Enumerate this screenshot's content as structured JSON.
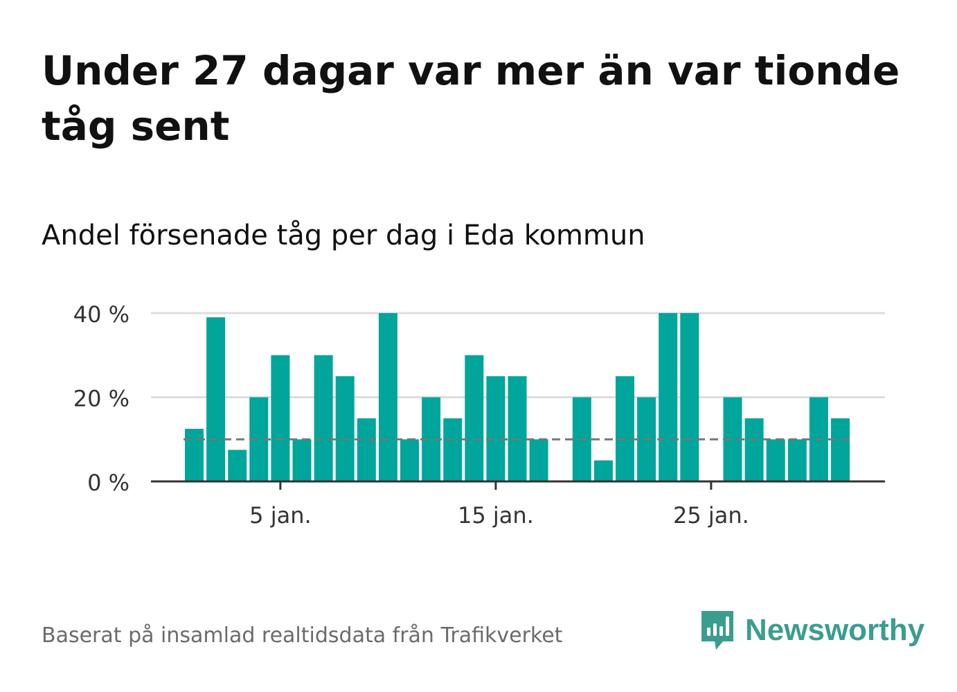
{
  "title": "Under 27 dagar var mer än var tionde tåg sent",
  "subtitle": "Andel försenade tåg per dag i Eda kommun",
  "footer": "Baserat på insamlad realtidsdata från Trafikverket",
  "brand": {
    "name": "Newsworthy",
    "color": "#3b9d90",
    "logo_icon": "newsworthy-bar-chart-bubble-icon"
  },
  "colors": {
    "bar": "#00a59b",
    "reference_line": "#777777",
    "grid": "#dddddd",
    "axis": "#333333",
    "tick_text": "#333333"
  },
  "chart_data": {
    "type": "bar",
    "x": [
      "1 jan.",
      "2 jan.",
      "3 jan.",
      "4 jan.",
      "5 jan.",
      "6 jan.",
      "7 jan.",
      "8 jan.",
      "9 jan.",
      "10 jan.",
      "11 jan.",
      "12 jan.",
      "13 jan.",
      "14 jan.",
      "15 jan.",
      "16 jan.",
      "17 jan.",
      "18 jan.",
      "19 jan.",
      "20 jan.",
      "21 jan.",
      "22 jan.",
      "23 jan.",
      "24 jan.",
      "25 jan.",
      "26 jan.",
      "27 jan.",
      "28 jan.",
      "29 jan.",
      "30 jan.",
      "31 jan."
    ],
    "values": [
      12.5,
      39,
      7.5,
      20,
      30,
      10,
      30,
      25,
      15,
      40,
      10,
      20,
      15,
      30,
      25,
      25,
      10,
      0,
      20,
      5,
      25,
      20,
      40,
      40,
      0,
      20,
      15,
      10,
      10,
      20,
      15
    ],
    "reference_line": {
      "value": 10,
      "style": "dashed"
    },
    "ylim": [
      0,
      40
    ],
    "yticks": [
      0,
      20,
      40
    ],
    "ytick_labels": [
      "0 %",
      "20 %",
      "40 %"
    ],
    "xticks": [
      "5 jan.",
      "15 jan.",
      "25 jan."
    ],
    "xlabel": "",
    "ylabel": "",
    "grid": true,
    "legend": "none"
  }
}
